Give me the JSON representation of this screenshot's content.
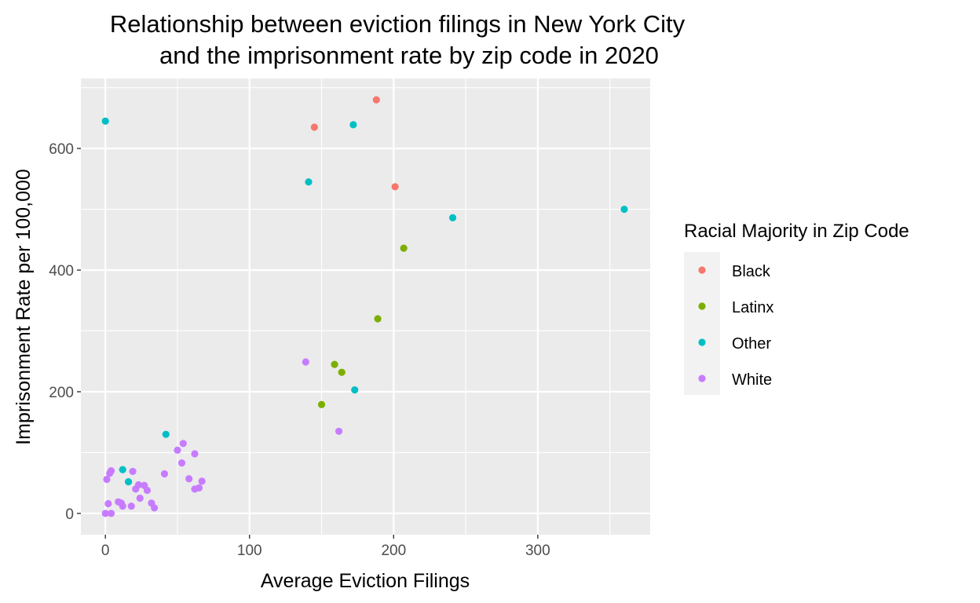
{
  "chart_data": {
    "type": "scatter",
    "title": [
      "Relationship between eviction filings in New York City",
      "and the imprisonment rate by zip code in 2020"
    ],
    "xlabel": "Average Eviction Filings",
    "ylabel": "Imprisonment Rate per 100,000",
    "xlim": [
      -17,
      378
    ],
    "ylim": [
      -35,
      715
    ],
    "xticks": [
      0,
      100,
      200,
      300
    ],
    "yticks": [
      0,
      200,
      400,
      600
    ],
    "x_minor": [
      50,
      150,
      250,
      350
    ],
    "y_minor": [
      100,
      300,
      500,
      700
    ],
    "grid": true,
    "panel_background": "#ebebeb",
    "legend": {
      "title": "Racial Majority in Zip Code",
      "position": "right"
    },
    "series": [
      {
        "name": "Black",
        "color": "#f8766d",
        "points": [
          [
            145,
            635
          ],
          [
            188,
            680
          ],
          [
            201,
            537
          ]
        ]
      },
      {
        "name": "Latinx",
        "color": "#7cae00",
        "points": [
          [
            150,
            179
          ],
          [
            159,
            245
          ],
          [
            164,
            232
          ],
          [
            189,
            320
          ],
          [
            207,
            436
          ]
        ]
      },
      {
        "name": "Other",
        "color": "#00bfc4",
        "points": [
          [
            0,
            645
          ],
          [
            12,
            72
          ],
          [
            16,
            52
          ],
          [
            42,
            130
          ],
          [
            141,
            545
          ],
          [
            172,
            639
          ],
          [
            173,
            203
          ],
          [
            241,
            486
          ],
          [
            360,
            500
          ]
        ]
      },
      {
        "name": "White",
        "color": "#c77cff",
        "points": [
          [
            0,
            0
          ],
          [
            1,
            56
          ],
          [
            2,
            16
          ],
          [
            3,
            66
          ],
          [
            4,
            70
          ],
          [
            4,
            0
          ],
          [
            9,
            19
          ],
          [
            11,
            17
          ],
          [
            12,
            12
          ],
          [
            18,
            12
          ],
          [
            19,
            69
          ],
          [
            21,
            40
          ],
          [
            23,
            47
          ],
          [
            24,
            25
          ],
          [
            27,
            46
          ],
          [
            29,
            38
          ],
          [
            32,
            17
          ],
          [
            34,
            9
          ],
          [
            41,
            65
          ],
          [
            50,
            104
          ],
          [
            53,
            83
          ],
          [
            54,
            115
          ],
          [
            58,
            57
          ],
          [
            62,
            98
          ],
          [
            62,
            40
          ],
          [
            65,
            42
          ],
          [
            67,
            53
          ],
          [
            139,
            249
          ],
          [
            162,
            135
          ]
        ]
      }
    ]
  }
}
